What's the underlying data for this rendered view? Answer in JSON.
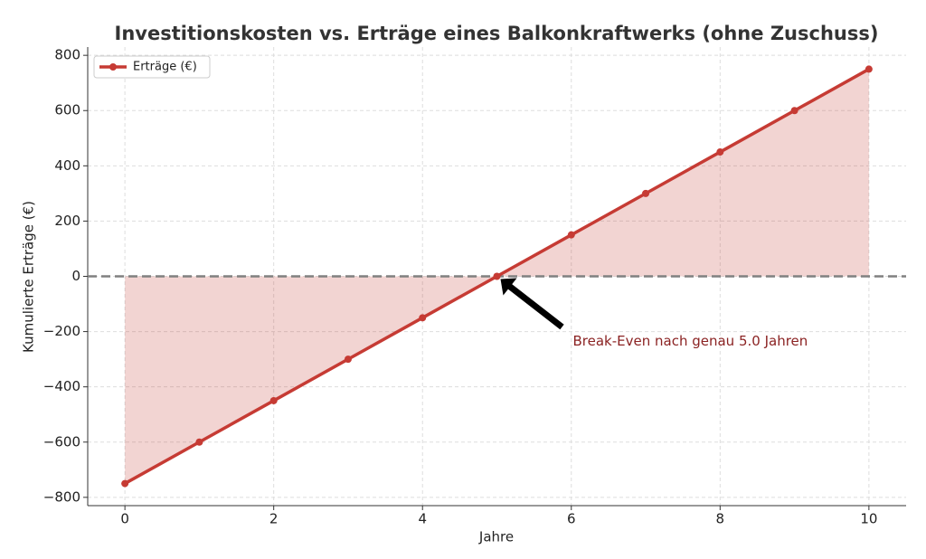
{
  "chart_data": {
    "type": "line",
    "title": "Investitionskosten vs. Erträge eines Balkonkraftwerks (ohne Zuschuss)",
    "x_label": "Jahre",
    "y_label": "Kumulierte Erträge (€)",
    "x": [
      0,
      1,
      2,
      3,
      4,
      5,
      6,
      7,
      8,
      9,
      10
    ],
    "series": [
      {
        "name": "Erträge (€)",
        "color": "#c63b34",
        "fill_to_zero": true,
        "values": [
          -750,
          -600,
          -450,
          -300,
          -150,
          0,
          150,
          300,
          450,
          600,
          750
        ]
      }
    ],
    "xlim": [
      -0.5,
      10.5
    ],
    "xticks": [
      0,
      2,
      4,
      6,
      8,
      10
    ],
    "ylim": [
      -830,
      830
    ],
    "yticks": [
      {
        "value": -800,
        "label": "−800"
      },
      {
        "value": -600,
        "label": "−600"
      },
      {
        "value": -400,
        "label": "−400"
      },
      {
        "value": -200,
        "label": "−200"
      },
      0,
      200,
      400,
      600,
      800
    ],
    "reference_line": 0,
    "annotation": {
      "text": "Break-Even nach genau 5.0 Jahren",
      "x": 5,
      "y": 0
    },
    "grid": true,
    "legend": "upper left"
  }
}
